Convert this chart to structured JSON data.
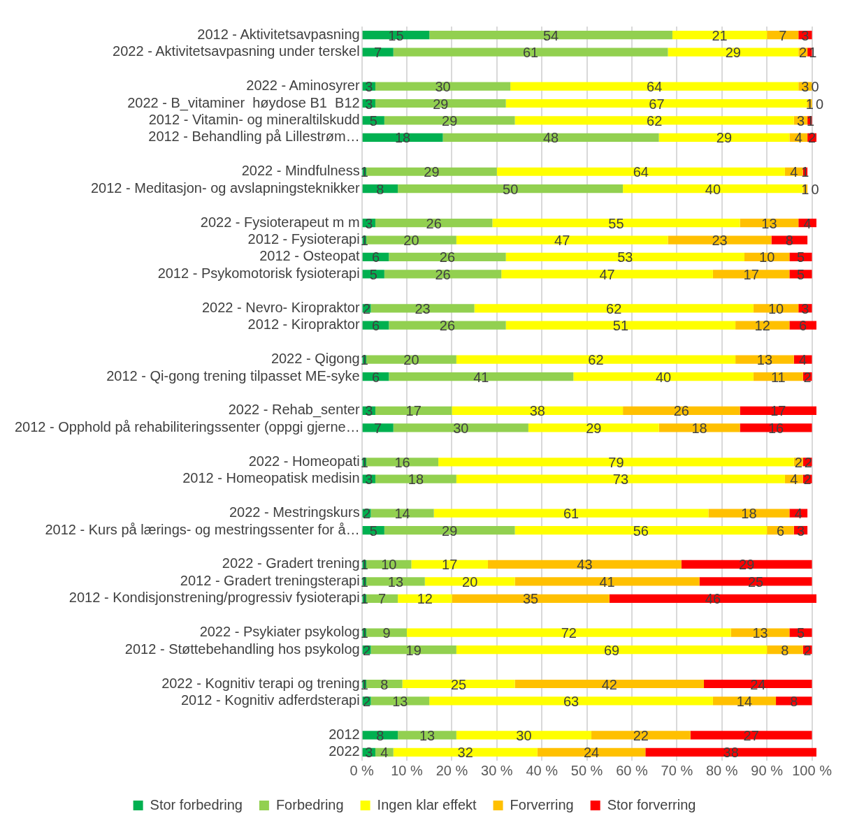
{
  "chart_data": {
    "type": "bar",
    "orientation": "horizontal",
    "stacked": true,
    "data_labels": true,
    "grid": "x",
    "legend": "bottom",
    "categories": [
      "2012 - Aktivitetsavpasning",
      "2022 - Aktivitetsavpasning under terskel",
      null,
      "2022 - Aminosyrer",
      "2022 - B_vitaminer  høydose B1  B12",
      "2012 - Vitamin- og mineraltilskudd",
      "2012 - Behandling på Lillestrøm…",
      null,
      "2022 - Mindfulness",
      "2012 - Meditasjon- og avslapningsteknikker",
      null,
      "2022 - Fysioterapeut m m",
      "2012 - Fysioterapi",
      "2012 - Osteopat",
      "2012 - Psykomotorisk fysioterapi",
      null,
      "2022 - Nevro- Kiropraktor",
      "2012 - Kiropraktor",
      null,
      "2022 - Qigong",
      "2012 - Qi-gong trening tilpasset ME-syke",
      null,
      "2022 - Rehab_senter",
      "2012 - Opphold på rehabiliteringssenter (oppgi gjerne…",
      null,
      "2022 - Homeopati",
      "2012 - Homeopatisk medisin",
      null,
      "2022 - Mestringskurs",
      "2012 - Kurs på lærings- og mestringssenter for å…",
      null,
      "2022 - Gradert trening",
      "2012 - Gradert treningsterapi",
      "2012 - Kondisjonstrening/progressiv fysioterapi",
      null,
      "2022 - Psykiater psykolog",
      "2012 - Støttebehandling hos psykolog",
      null,
      "2022 - Kognitiv terapi og trening",
      "2012 - Kognitiv adferdsterapi",
      null,
      "2012",
      "2022"
    ],
    "series": [
      {
        "name": "Stor forbedring",
        "color": "#00b050",
        "values": [
          15,
          7,
          null,
          3,
          3,
          5,
          18,
          null,
          1,
          8,
          null,
          3,
          1,
          6,
          5,
          null,
          2,
          6,
          null,
          1,
          6,
          null,
          3,
          7,
          null,
          1,
          3,
          null,
          2,
          5,
          null,
          1,
          1,
          1,
          null,
          1,
          2,
          null,
          1,
          2,
          null,
          8,
          3
        ]
      },
      {
        "name": "Forbedring",
        "color": "#92d050",
        "values": [
          54,
          61,
          null,
          30,
          29,
          29,
          48,
          null,
          29,
          50,
          null,
          26,
          20,
          26,
          26,
          null,
          23,
          26,
          null,
          20,
          41,
          null,
          17,
          30,
          null,
          16,
          18,
          null,
          14,
          29,
          null,
          10,
          13,
          7,
          null,
          9,
          19,
          null,
          8,
          13,
          null,
          13,
          4
        ]
      },
      {
        "name": "Ingen klar effekt",
        "color": "#ffff00",
        "values": [
          21,
          29,
          null,
          64,
          67,
          62,
          29,
          null,
          64,
          40,
          null,
          55,
          47,
          53,
          47,
          null,
          62,
          51,
          null,
          62,
          40,
          null,
          38,
          29,
          null,
          79,
          73,
          null,
          61,
          56,
          null,
          17,
          20,
          12,
          null,
          72,
          69,
          null,
          25,
          63,
          null,
          30,
          32
        ]
      },
      {
        "name": "Forverring",
        "color": "#ffc000",
        "values": [
          7,
          2,
          null,
          3,
          1,
          3,
          4,
          null,
          4,
          1,
          null,
          13,
          23,
          10,
          17,
          null,
          10,
          12,
          null,
          13,
          11,
          null,
          26,
          18,
          null,
          2,
          4,
          null,
          18,
          6,
          null,
          43,
          41,
          35,
          null,
          13,
          8,
          null,
          42,
          14,
          null,
          22,
          24
        ]
      },
      {
        "name": "Stor forverring",
        "color": "#ff0000",
        "values": [
          3,
          1,
          null,
          0,
          0,
          1,
          2,
          null,
          1,
          0,
          null,
          4,
          8,
          5,
          5,
          null,
          3,
          6,
          null,
          4,
          2,
          null,
          17,
          16,
          null,
          2,
          2,
          null,
          4,
          3,
          null,
          29,
          25,
          46,
          null,
          5,
          2,
          null,
          24,
          8,
          null,
          27,
          38
        ]
      }
    ],
    "xlim": [
      0,
      101
    ],
    "xticks": [
      {
        "value": 0,
        "label": "0 %"
      },
      {
        "value": 10,
        "label": "10 %"
      },
      {
        "value": 20,
        "label": "20 %"
      },
      {
        "value": 30,
        "label": "30 %"
      },
      {
        "value": 40,
        "label": "40 %"
      },
      {
        "value": 50,
        "label": "50 %"
      },
      {
        "value": 60,
        "label": "60 %"
      },
      {
        "value": 70,
        "label": "70 %"
      },
      {
        "value": 80,
        "label": "80 %"
      },
      {
        "value": 90,
        "label": "90 %"
      },
      {
        "value": 100,
        "label": "100 %"
      }
    ]
  }
}
